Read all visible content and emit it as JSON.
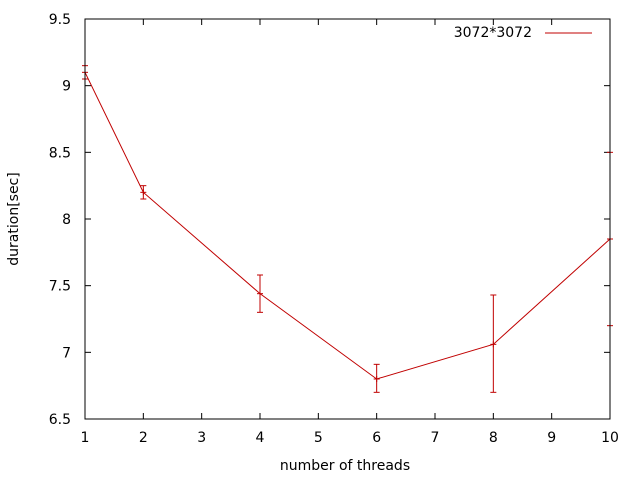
{
  "chart_data": {
    "type": "line",
    "xlabel": "number of threads",
    "ylabel": "duration[sec]",
    "xlim": [
      1,
      10
    ],
    "ylim": [
      6.5,
      9.5
    ],
    "xticks": [
      1,
      2,
      3,
      4,
      5,
      6,
      7,
      8,
      9,
      10
    ],
    "yticks": [
      6.5,
      7,
      7.5,
      8,
      8.5,
      9,
      9.5
    ],
    "legend_position": "top-right",
    "series": [
      {
        "name": "3072*3072",
        "color": "#c00000",
        "x": [
          1,
          2,
          4,
          6,
          8,
          10
        ],
        "y": [
          9.1,
          8.2,
          7.44,
          6.8,
          7.06,
          7.85
        ],
        "err_low": [
          9.05,
          8.15,
          7.3,
          6.7,
          6.7,
          7.2
        ],
        "err_high": [
          9.15,
          8.25,
          7.58,
          6.91,
          7.43,
          8.5
        ]
      }
    ]
  }
}
